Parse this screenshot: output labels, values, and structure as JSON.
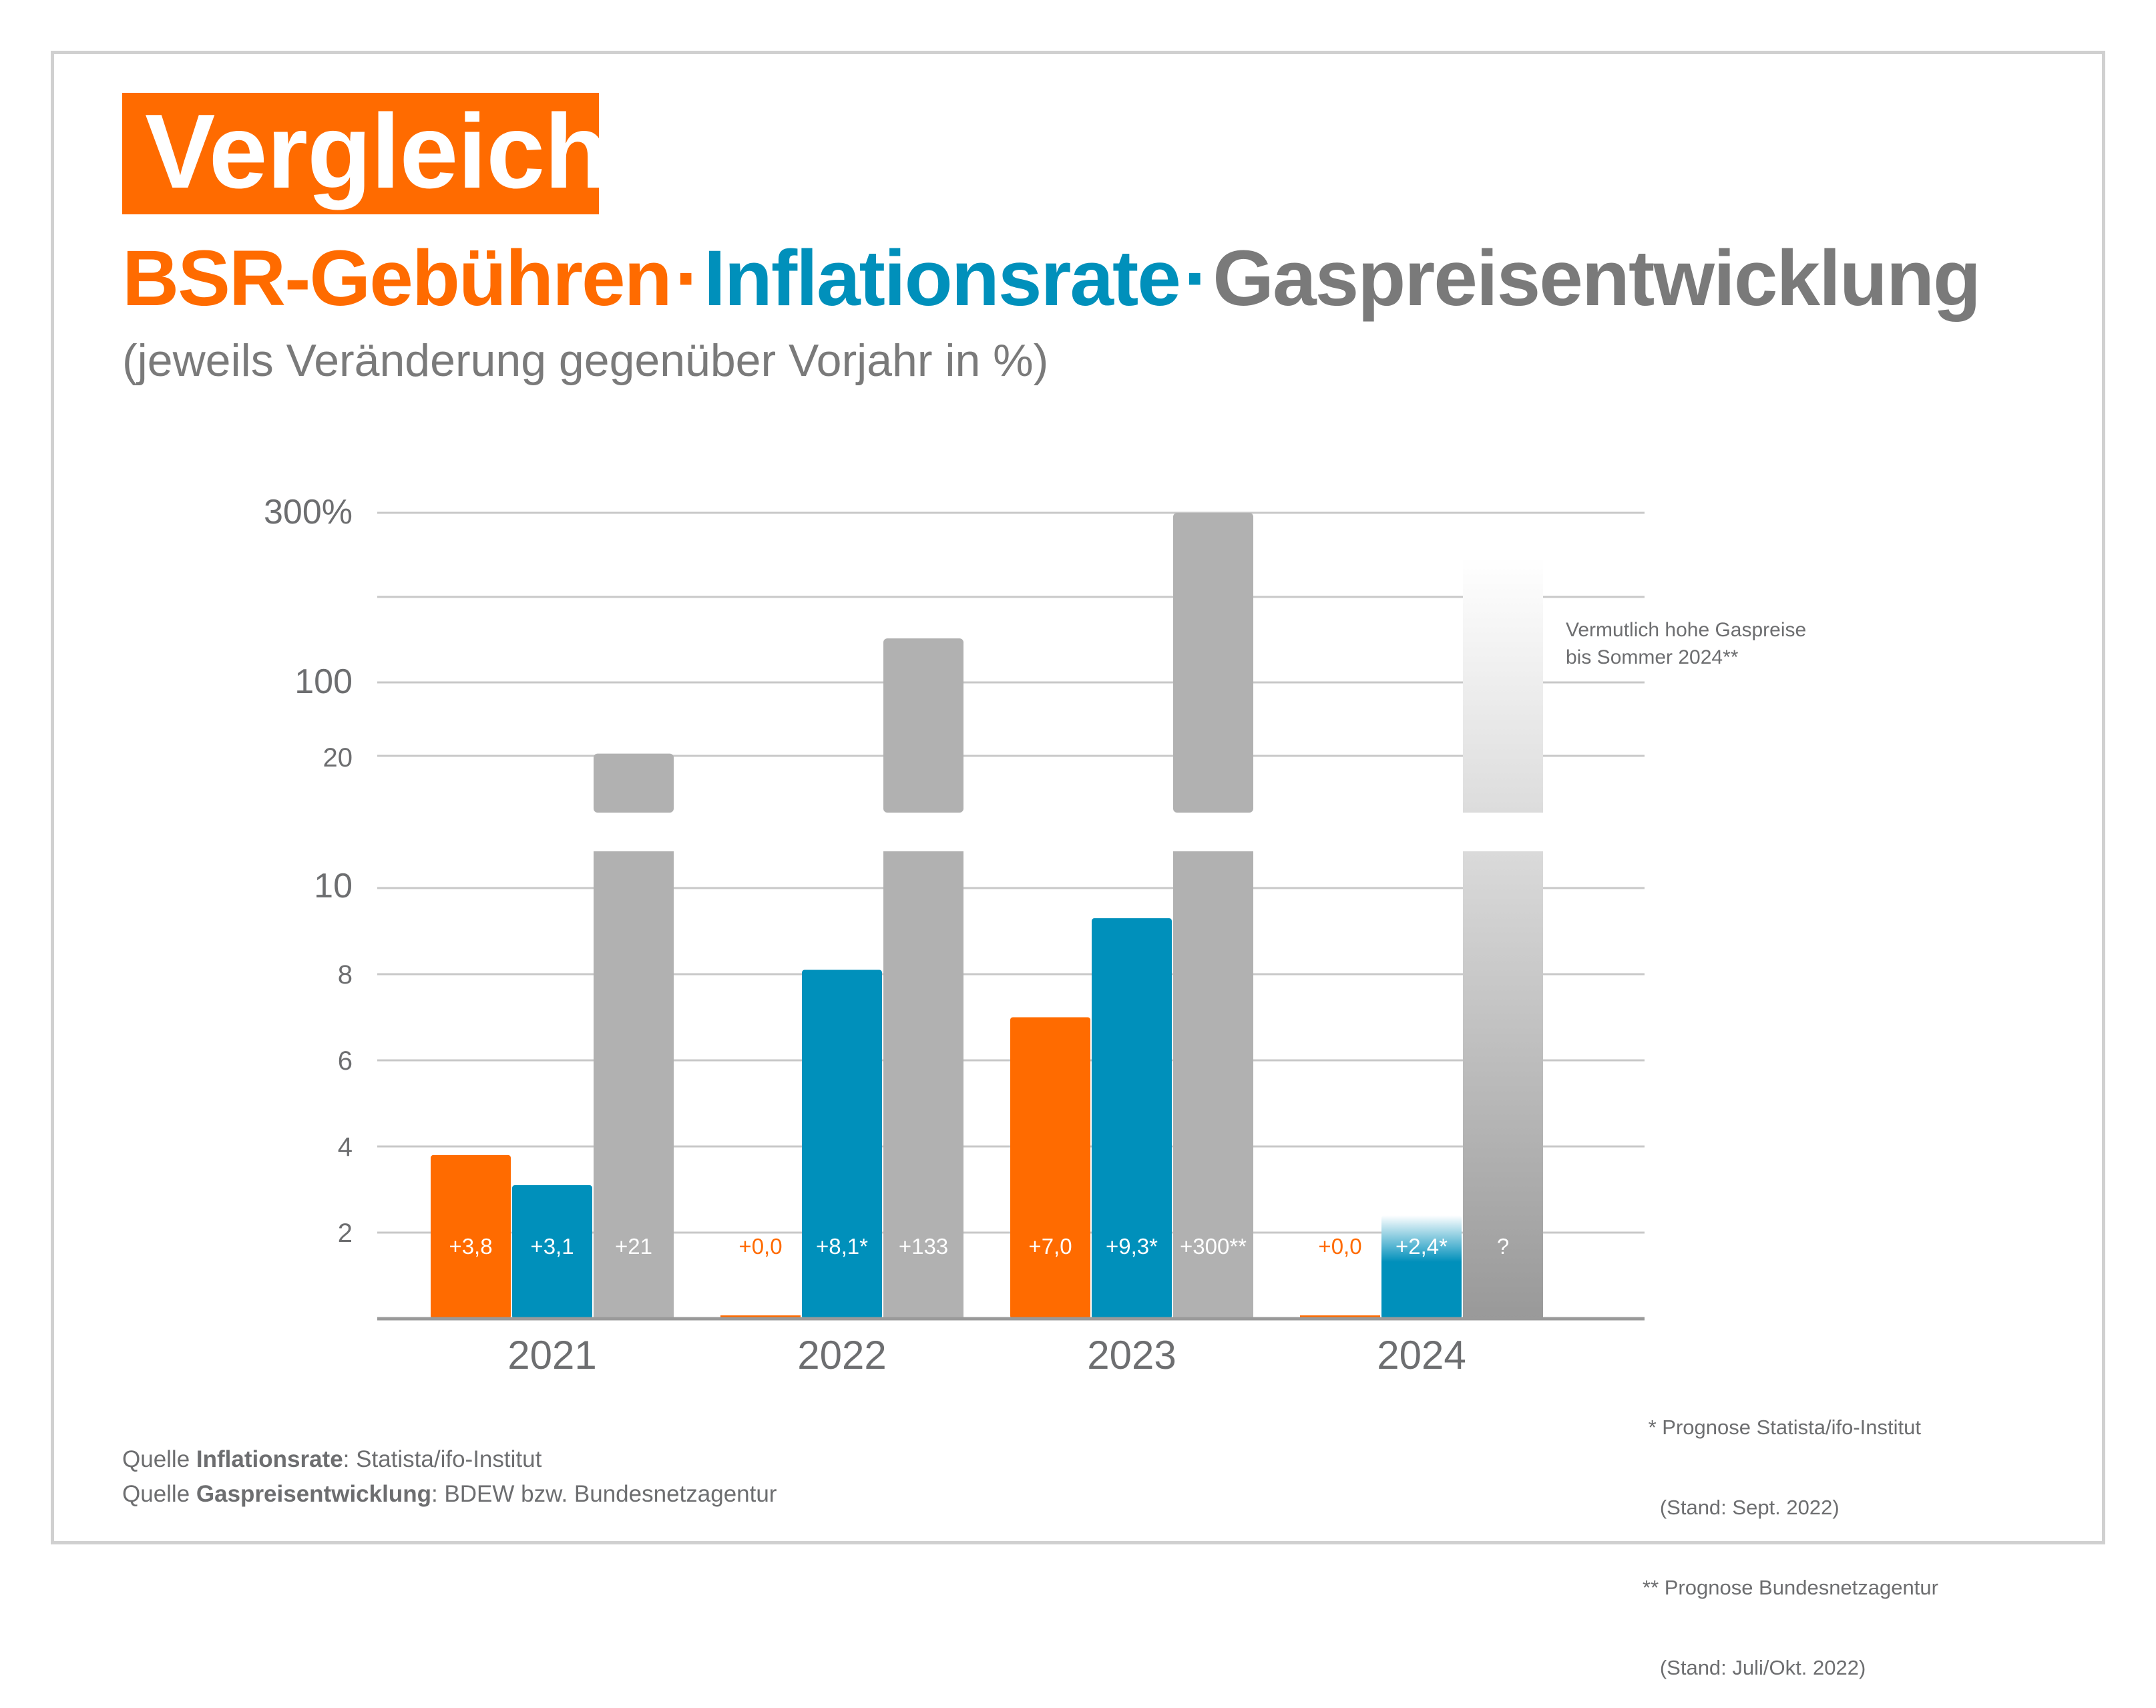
{
  "badge": "Vergleich",
  "headline": {
    "part1": "BSR-Gebühren",
    "part2": "Inflationsrate",
    "part3": "Gaspreisentwicklung",
    "separator": "·"
  },
  "subtitle": "(jeweils Veränderung gegenüber Vorjahr in %)",
  "sources": {
    "line1_prefix": "Quelle ",
    "line1_bold": "Inflationsrate",
    "line1_rest": ": Statista/ifo-Institut",
    "line2_prefix": "Quelle ",
    "line2_bold": "Gaspreisentwicklung",
    "line2_rest": ": BDEW bzw. Bundesnetzagentur"
  },
  "footnotes": [
    " * Prognose Statista/ifo-Institut",
    "   (Stand: Sept. 2022)",
    "** Prognose Bundesnetzagentur",
    "   (Stand: Juli/Okt. 2022)"
  ],
  "colors": {
    "bsr": "#ff6b00",
    "inflation": "#0090bb",
    "gas": "#b1b1b1",
    "text": "#6d6e70",
    "grid": "#c8c8c8"
  },
  "chart_data": {
    "type": "bar",
    "categories": [
      "2021",
      "2022",
      "2023",
      "2024"
    ],
    "series": [
      {
        "values": [
          3.8,
          0.0,
          7.0,
          0.0
        ],
        "labels": [
          "+3,8",
          "+0,0",
          "+7,0",
          "+0,0"
        ]
      },
      {
        "values": [
          3.1,
          8.1,
          9.3,
          2.4
        ],
        "labels": [
          "+3,1",
          "+8,1*",
          "+9,3*",
          "+2,4*"
        ]
      },
      {
        "values": [
          21,
          133,
          300,
          null
        ],
        "labels": [
          "+21",
          "+133",
          "+300**",
          "?"
        ]
      }
    ],
    "y_scale": "broken axis (linear 0–10, compressed above)",
    "y_ticks_lower": [
      "2",
      "4",
      "6",
      "8",
      "10"
    ],
    "y_ticks_upper": [
      "20",
      "100",
      "300%"
    ],
    "annotation": "Vermutlich hohe Gaspreise\nbis Sommer 2024**",
    "legend": "none (series colors match headline)",
    "grid": true
  }
}
